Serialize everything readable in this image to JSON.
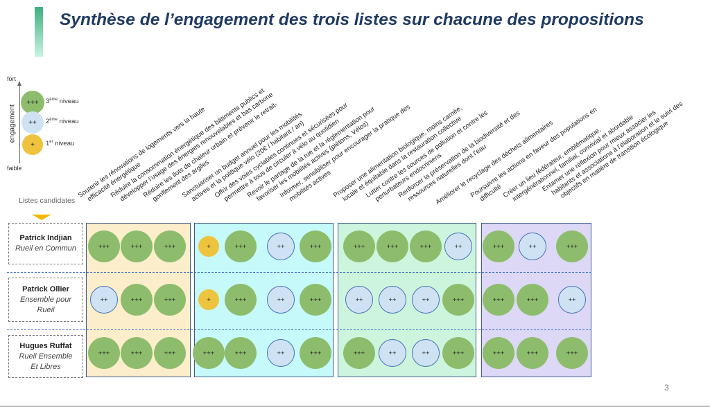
{
  "title": "Synthèse de l’engagement des trois listes sur chacune des propositions",
  "legend": {
    "top_label": "fort",
    "bottom_label": "faible",
    "axis_label": "engagement",
    "levels": [
      {
        "symbol": "+++",
        "ordinal": "3",
        "sup": "ème",
        "text": " niveau",
        "color": "#8dbd6c"
      },
      {
        "symbol": "++",
        "ordinal": "2",
        "sup": "ème",
        "text": " niveau",
        "color": "#cfe2f3"
      },
      {
        "symbol": "+",
        "ordinal": "1",
        "sup": "er",
        "text": " niveau",
        "color": "#eec33d"
      }
    ]
  },
  "listes_label": "Listes candidates",
  "candidates": [
    {
      "name": "Patrick Indjian",
      "list": "Rueil en Commun"
    },
    {
      "name": "Patrick Ollier",
      "list": "Ensemble pour Rueil"
    },
    {
      "name": "Hugues Ruffat",
      "list": "Rueil Ensemble Et Libres"
    }
  ],
  "groups": [
    {
      "color": "#fdeecb",
      "count": 3
    },
    {
      "color": "#c6fafa",
      "count": 4
    },
    {
      "color": "#cdf5dd",
      "count": 4
    },
    {
      "color": "#dcd8f5",
      "count": 3
    }
  ],
  "propositions": [
    [
      "Soutenir les rénovations de logements vers la haute",
      "efficacité énergétique"
    ],
    [
      "Réduire la consommation énergétique des bâtiments publics et",
      "développer l’usage des énergies renouvelables et bas carbone"
    ],
    [
      "Réduire les ilots de chaleur urbain et prévenir le retrait-",
      "gonflement des argiles"
    ],
    [
      "Sanctuariser un budget annuel pour les mobilités",
      "actives et la politique vélo (20€ / habitant / an)"
    ],
    [
      "Offrir des voies cyclables continues et sécurisées pour",
      "permettre à tous de circuler à vélo au quotidien"
    ],
    [
      "Revoir le partage de la rue et la réglementation pour",
      "favoriser les mobilités actives (piétons, Vélos)"
    ],
    [
      "Informer, sensibiliser pour encourager la pratique des",
      "mobilités actives"
    ],
    [
      "Proposer une alimentation biologique, moins carnée,",
      "locale et équitable dans la restauration collective"
    ],
    [
      "Lutter contre les sources de pollution et contre les",
      "perturbateurs endocriniens"
    ],
    [
      "Renforcer la préservation de la biodiversité et des",
      "ressources naturelles dont l’eau"
    ],
    [
      "Améliorer le recyclage des déchets alimentaires",
      ""
    ],
    [
      "Poursuivre les actions en faveur des populations en",
      "difficulté"
    ],
    [
      "Créer un lieu fédérateur, emblématique,",
      "intergénérationnel, familial, convivial et abordable"
    ],
    [
      "Entamer une réflexion pour mieux associer les",
      "habitants et associations à l’élaboration et le suivi des",
      "objectifs en matière de transition écologique"
    ]
  ],
  "engagement": [
    [
      "+++",
      "+++",
      "+++",
      "+",
      "+++",
      "++",
      "+++",
      "+++",
      "+++",
      "+++",
      "++",
      "+++",
      "++",
      "+++"
    ],
    [
      "++",
      "+++",
      "+++",
      "+",
      "+++",
      "++",
      "+++",
      "++",
      "++",
      "++",
      "+++",
      "+++",
      "+++",
      "++"
    ],
    [
      "+++",
      "+++",
      "+++",
      "+++",
      "+++",
      "++",
      "+++",
      "+++",
      "++",
      "++",
      "+++",
      "+++",
      "+++",
      "+++"
    ]
  ],
  "page_number": "3"
}
